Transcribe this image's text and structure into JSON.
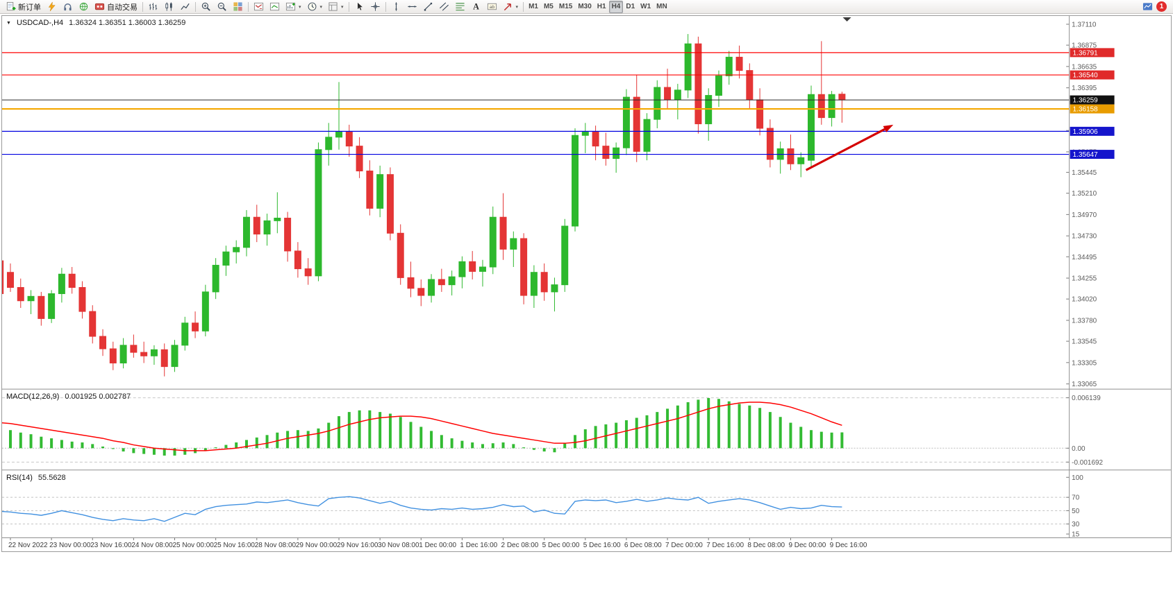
{
  "toolbar": {
    "new_order_label": "新订单",
    "auto_trading_label": "自动交易",
    "active_timeframe": "H4",
    "notification_count": "1",
    "items": [
      {
        "name": "new-order-button",
        "icon": "doc-plus",
        "label": "新订单"
      },
      {
        "name": "quick-trade-button",
        "icon": "lightning"
      },
      {
        "name": "market-watch-button",
        "icon": "headset"
      },
      {
        "name": "community-button",
        "icon": "globe"
      },
      {
        "name": "auto-trading-button",
        "icon": "autotrade",
        "label": "自动交易"
      },
      {
        "type": "sep"
      },
      {
        "name": "bar-chart-type-button",
        "icon": "bars"
      },
      {
        "name": "candlestick-chart-type-button",
        "icon": "candles"
      },
      {
        "name": "line-chart-type-button",
        "icon": "line"
      },
      {
        "type": "sep"
      },
      {
        "name": "zoom-in-button",
        "icon": "zoom-in"
      },
      {
        "name": "zoom-out-button",
        "icon": "zoom-out"
      },
      {
        "name": "tile-windows-button",
        "icon": "tiles"
      },
      {
        "type": "sep"
      },
      {
        "name": "indicators-list-button",
        "icon": "chart-down"
      },
      {
        "name": "objects-list-button",
        "icon": "chart-up"
      },
      {
        "name": "new-chart-button",
        "icon": "new-chart",
        "caret": true
      },
      {
        "name": "profiles-button",
        "icon": "clock",
        "caret": true
      },
      {
        "name": "templates-button",
        "icon": "template",
        "caret": true
      },
      {
        "type": "sep"
      },
      {
        "name": "cursor-tool-button",
        "icon": "cursor"
      },
      {
        "name": "crosshair-tool-button",
        "icon": "crosshair"
      },
      {
        "type": "sep"
      },
      {
        "name": "vertical-line-tool-button",
        "icon": "vline"
      },
      {
        "name": "horizontal-line-tool-button",
        "icon": "hline"
      },
      {
        "name": "trendline-tool-button",
        "icon": "trendline"
      },
      {
        "name": "equidistant-channel-tool-button",
        "icon": "channel"
      },
      {
        "name": "fibonacci-tool-button",
        "icon": "fib"
      },
      {
        "name": "text-tool-button",
        "icon": "text-a"
      },
      {
        "name": "text-label-tool-button",
        "icon": "label-t"
      },
      {
        "name": "arrows-tool-button",
        "icon": "arrow-ne",
        "caret": true
      },
      {
        "type": "sep"
      },
      {
        "name": "timeframe-m1-button",
        "label": "M1",
        "tf": true
      },
      {
        "name": "timeframe-m5-button",
        "label": "M5",
        "tf": true
      },
      {
        "name": "timeframe-m15-button",
        "label": "M15",
        "tf": true
      },
      {
        "name": "timeframe-m30-button",
        "label": "M30",
        "tf": true
      },
      {
        "name": "timeframe-h1-button",
        "label": "H1",
        "tf": true
      },
      {
        "name": "timeframe-h4-button",
        "label": "H4",
        "tf": true
      },
      {
        "name": "timeframe-d1-button",
        "label": "D1",
        "tf": true
      },
      {
        "name": "timeframe-w1-button",
        "label": "W1",
        "tf": true
      },
      {
        "name": "timeframe-mn-button",
        "label": "MN",
        "tf": true
      }
    ]
  },
  "chart": {
    "symbol_period": "USDCAD-,H4",
    "ohlc": "1.36324 1.36351 1.36003 1.36259",
    "macd_label": "MACD(12,26,9)",
    "macd_values": "0.001925 0.002787",
    "rsi_label": "RSI(14)",
    "rsi_value": "55.5628"
  },
  "chart_data": {
    "type": "candlestick",
    "title": "USDCAD-,H4",
    "symbol": "USDCAD",
    "timeframe": "H4",
    "ohlc_display": {
      "open": "1.36324",
      "high": "1.36351",
      "low": "1.36003",
      "close": "1.36259"
    },
    "colors": {
      "up": "#2DB82D",
      "down": "#E43535",
      "macd_hist": "#33BB33",
      "macd_signal": "#FF0000",
      "rsi": "#4090E0",
      "axis_text": "#5a5a5a"
    },
    "price_axis": {
      "max": 1.3711,
      "min": 1.33065,
      "ticks": [
        "1.37110",
        "1.36875",
        "1.36635",
        "1.36395",
        "1.36155",
        "1.35915",
        "1.35675",
        "1.35445",
        "1.35210",
        "1.34970",
        "1.34730",
        "1.34495",
        "1.34255",
        "1.34020",
        "1.33780",
        "1.33545",
        "1.33305",
        "1.33065"
      ]
    },
    "hlines": [
      {
        "name": "resistance-line-1",
        "price": 1.36791,
        "label": "1.36791",
        "color": "#FF0000",
        "bg": "#E02A2A",
        "width": 1.2
      },
      {
        "name": "resistance-line-2",
        "price": 1.3654,
        "label": "1.36540",
        "color": "#FF0000",
        "bg": "#E02A2A",
        "width": 1.2
      },
      {
        "name": "current-price-line",
        "price": 1.36259,
        "label": "1.36259",
        "color": "#2a2a2a",
        "bg": "#111111",
        "width": 1
      },
      {
        "name": "pivot-line",
        "price": 1.36158,
        "label": "1.36158",
        "color": "#F5A800",
        "bg": "#E89C00",
        "width": 2.2
      },
      {
        "name": "support-line-1",
        "price": 1.35906,
        "label": "1.35906",
        "color": "#0000E0",
        "bg": "#1515CC",
        "width": 1.2
      },
      {
        "name": "support-line-2",
        "price": 1.35647,
        "label": "1.35647",
        "color": "#0000E0",
        "bg": "#1515CC",
        "width": 1.2
      }
    ],
    "arrow": {
      "from_i": 78.5,
      "from_price": 1.3547,
      "to_i": 87,
      "to_price": 1.3598,
      "color": "#D40000"
    },
    "time_labels": [
      "22 Nov 2022",
      "23 Nov 00:00",
      "23 Nov 16:00",
      "24 Nov 08:00",
      "25 Nov 00:00",
      "25 Nov 16:00",
      "28 Nov 08:00",
      "29 Nov 00:00",
      "29 Nov 16:00",
      "30 Nov 08:00",
      "1 Dec 00:00",
      "1 Dec 16:00",
      "2 Dec 08:00",
      "5 Dec 00:00",
      "5 Dec 16:00",
      "6 Dec 08:00",
      "7 Dec 00:00",
      "7 Dec 16:00",
      "8 Dec 08:00",
      "9 Dec 00:00",
      "9 Dec 16:00"
    ],
    "candles": [
      [
        1.3445,
        1.3455,
        1.34,
        1.3408
      ],
      [
        1.3432,
        1.3442,
        1.341,
        1.3415
      ],
      [
        1.3415,
        1.3425,
        1.3392,
        1.34
      ],
      [
        1.34,
        1.3412,
        1.3385,
        1.3405
      ],
      [
        1.3405,
        1.341,
        1.3372,
        1.338
      ],
      [
        1.338,
        1.3412,
        1.3375,
        1.3408
      ],
      [
        1.3408,
        1.3437,
        1.3398,
        1.343
      ],
      [
        1.343,
        1.3438,
        1.3408,
        1.3415
      ],
      [
        1.3415,
        1.3422,
        1.338,
        1.3388
      ],
      [
        1.3388,
        1.3395,
        1.3352,
        1.336
      ],
      [
        1.336,
        1.3368,
        1.3338,
        1.3346
      ],
      [
        1.3346,
        1.3354,
        1.3322,
        1.333
      ],
      [
        1.333,
        1.3358,
        1.3324,
        1.335
      ],
      [
        1.335,
        1.3362,
        1.3336,
        1.3342
      ],
      [
        1.3342,
        1.3354,
        1.333,
        1.3338
      ],
      [
        1.3338,
        1.335,
        1.3328,
        1.3345
      ],
      [
        1.3345,
        1.3352,
        1.3315,
        1.3326
      ],
      [
        1.3326,
        1.3356,
        1.332,
        1.335
      ],
      [
        1.335,
        1.3382,
        1.3344,
        1.3375
      ],
      [
        1.3375,
        1.3388,
        1.3358,
        1.3366
      ],
      [
        1.3366,
        1.3418,
        1.336,
        1.341
      ],
      [
        1.341,
        1.3448,
        1.3402,
        1.344
      ],
      [
        1.344,
        1.3462,
        1.3428,
        1.3455
      ],
      [
        1.3455,
        1.3468,
        1.3442,
        1.346
      ],
      [
        1.346,
        1.3502,
        1.345,
        1.3494
      ],
      [
        1.3494,
        1.3508,
        1.3466,
        1.3475
      ],
      [
        1.3475,
        1.3498,
        1.3462,
        1.349
      ],
      [
        1.349,
        1.3522,
        1.3476,
        1.3493
      ],
      [
        1.3493,
        1.35,
        1.3444,
        1.3456
      ],
      [
        1.3456,
        1.3466,
        1.3426,
        1.3436
      ],
      [
        1.3436,
        1.3448,
        1.3418,
        1.3428
      ],
      [
        1.3428,
        1.3578,
        1.3422,
        1.357
      ],
      [
        1.357,
        1.36,
        1.3552,
        1.3584
      ],
      [
        1.3584,
        1.3646,
        1.357,
        1.359
      ],
      [
        1.359,
        1.3598,
        1.3562,
        1.3574
      ],
      [
        1.3574,
        1.3584,
        1.3538,
        1.3546
      ],
      [
        1.3546,
        1.3558,
        1.3496,
        1.3504
      ],
      [
        1.3504,
        1.3552,
        1.3494,
        1.3542
      ],
      [
        1.3542,
        1.355,
        1.3468,
        1.3476
      ],
      [
        1.3476,
        1.3486,
        1.3418,
        1.3426
      ],
      [
        1.3426,
        1.3444,
        1.3404,
        1.3414
      ],
      [
        1.3414,
        1.3424,
        1.3394,
        1.3406
      ],
      [
        1.3406,
        1.343,
        1.3398,
        1.3424
      ],
      [
        1.3424,
        1.3436,
        1.341,
        1.3418
      ],
      [
        1.3418,
        1.3434,
        1.3406,
        1.3427
      ],
      [
        1.3427,
        1.345,
        1.3414,
        1.3444
      ],
      [
        1.3444,
        1.3456,
        1.3424,
        1.3433
      ],
      [
        1.3433,
        1.3446,
        1.3416,
        1.3438
      ],
      [
        1.3438,
        1.3506,
        1.343,
        1.3494
      ],
      [
        1.3494,
        1.3521,
        1.3446,
        1.3458
      ],
      [
        1.3458,
        1.3478,
        1.3438,
        1.347
      ],
      [
        1.347,
        1.3476,
        1.3396,
        1.3406
      ],
      [
        1.3406,
        1.344,
        1.3392,
        1.3432
      ],
      [
        1.3432,
        1.3442,
        1.34,
        1.341
      ],
      [
        1.341,
        1.3426,
        1.3388,
        1.3418
      ],
      [
        1.3418,
        1.3492,
        1.341,
        1.3484
      ],
      [
        1.3484,
        1.3594,
        1.3478,
        1.3586
      ],
      [
        1.3586,
        1.36,
        1.3566,
        1.359
      ],
      [
        1.359,
        1.3597,
        1.3558,
        1.3574
      ],
      [
        1.3574,
        1.3589,
        1.3552,
        1.356
      ],
      [
        1.356,
        1.3578,
        1.3544,
        1.3572
      ],
      [
        1.3572,
        1.3638,
        1.3564,
        1.3629
      ],
      [
        1.3629,
        1.3654,
        1.3556,
        1.3568
      ],
      [
        1.3568,
        1.3611,
        1.3558,
        1.3604
      ],
      [
        1.3604,
        1.3648,
        1.3594,
        1.364
      ],
      [
        1.364,
        1.3661,
        1.3616,
        1.3626
      ],
      [
        1.3626,
        1.3644,
        1.3604,
        1.3637
      ],
      [
        1.3637,
        1.37,
        1.3628,
        1.3689
      ],
      [
        1.3689,
        1.3697,
        1.3588,
        1.3599
      ],
      [
        1.3599,
        1.3639,
        1.358,
        1.3631
      ],
      [
        1.3631,
        1.3659,
        1.3618,
        1.3653
      ],
      [
        1.3653,
        1.3681,
        1.3643,
        1.3674
      ],
      [
        1.3674,
        1.3687,
        1.365,
        1.3659
      ],
      [
        1.3659,
        1.3667,
        1.3616,
        1.3626
      ],
      [
        1.3626,
        1.3639,
        1.3586,
        1.3594
      ],
      [
        1.3594,
        1.3604,
        1.355,
        1.3559
      ],
      [
        1.3559,
        1.3579,
        1.3543,
        1.3571
      ],
      [
        1.3571,
        1.3587,
        1.3547,
        1.3554
      ],
      [
        1.3554,
        1.3567,
        1.3539,
        1.3561
      ],
      [
        1.3558,
        1.3642,
        1.355,
        1.3632
      ],
      [
        1.3632,
        1.3692,
        1.3598,
        1.3606
      ],
      [
        1.3606,
        1.3636,
        1.3596,
        1.3632
      ],
      [
        1.36324,
        1.36351,
        1.36003,
        1.36259
      ]
    ],
    "macd": {
      "label": "MACD(12,26,9)",
      "main_value": "0.001925",
      "signal_value": "0.002787",
      "range": [
        -0.001692,
        0.006139
      ],
      "axis_labels": [
        "0.006139",
        "0.00",
        "-0.001692"
      ],
      "histogram": [
        0.0024,
        0.0022,
        0.0019,
        0.0017,
        0.0014,
        0.0012,
        0.001,
        0.0008,
        0.0007,
        0.0005,
        0.0002,
        -0.0001,
        -0.0004,
        -0.0006,
        -0.0007,
        -0.0008,
        -0.0009,
        -0.0009,
        -0.0008,
        -0.0006,
        -0.0003,
        0.0001,
        0.0004,
        0.0007,
        0.001,
        0.0013,
        0.0016,
        0.0019,
        0.0021,
        0.0022,
        0.0021,
        0.0024,
        0.0031,
        0.0039,
        0.0044,
        0.0046,
        0.0046,
        0.0044,
        0.0042,
        0.0038,
        0.0032,
        0.0026,
        0.0021,
        0.0016,
        0.0012,
        0.0009,
        0.0007,
        0.0005,
        0.0006,
        0.0007,
        0.0005,
        0.0001,
        -0.0002,
        -0.0004,
        -0.0005,
        0.0006,
        0.0016,
        0.0023,
        0.0027,
        0.0029,
        0.0031,
        0.0034,
        0.0037,
        0.004,
        0.0044,
        0.0048,
        0.0052,
        0.0056,
        0.0059,
        0.0061,
        0.006,
        0.0057,
        0.0054,
        0.0052,
        0.0049,
        0.0044,
        0.0038,
        0.0031,
        0.0026,
        0.0022,
        0.002,
        0.0019,
        0.001925
      ],
      "signal": [
        0.0031,
        0.003,
        0.0028,
        0.0026,
        0.0024,
        0.0022,
        0.002,
        0.0018,
        0.0016,
        0.0014,
        0.0012,
        0.0009,
        0.0007,
        0.0004,
        0.0002,
        0.0,
        -0.0001,
        -0.0002,
        -0.0003,
        -0.0003,
        -0.0003,
        -0.0002,
        -0.0001,
        0.0,
        0.0002,
        0.0004,
        0.0006,
        0.0009,
        0.0012,
        0.0014,
        0.0016,
        0.0018,
        0.0021,
        0.0025,
        0.0029,
        0.0032,
        0.0035,
        0.0037,
        0.0038,
        0.0039,
        0.0039,
        0.0038,
        0.0036,
        0.0033,
        0.003,
        0.0027,
        0.0024,
        0.0021,
        0.0018,
        0.0016,
        0.0014,
        0.0012,
        0.001,
        0.0008,
        0.0006,
        0.0006,
        0.0007,
        0.0009,
        0.0012,
        0.0015,
        0.0018,
        0.0021,
        0.0024,
        0.0027,
        0.003,
        0.0033,
        0.0036,
        0.004,
        0.0044,
        0.0048,
        0.0051,
        0.0053,
        0.0055,
        0.0056,
        0.0056,
        0.0055,
        0.0053,
        0.005,
        0.0046,
        0.0042,
        0.0037,
        0.0032,
        0.002787
      ]
    },
    "rsi": {
      "label": "RSI(14)",
      "value": "55.5628",
      "range": [
        15,
        100
      ],
      "levels": [
        70,
        50,
        30
      ],
      "axis_labels": [
        "100",
        "70",
        "50",
        "30",
        "15"
      ],
      "values": [
        49,
        48,
        46,
        45,
        43,
        46,
        50,
        47,
        44,
        40,
        37,
        35,
        38,
        36,
        35,
        38,
        34,
        40,
        46,
        44,
        52,
        56,
        58,
        59,
        60,
        63,
        62,
        64,
        66,
        62,
        59,
        57,
        68,
        70,
        71,
        69,
        65,
        61,
        64,
        58,
        54,
        52,
        51,
        53,
        52,
        54,
        52,
        53,
        55,
        59,
        56,
        57,
        48,
        51,
        46,
        45,
        64,
        66,
        65,
        66,
        62,
        64,
        67,
        64,
        66,
        69,
        67,
        66,
        70,
        61,
        64,
        66,
        68,
        66,
        62,
        57,
        52,
        55,
        53,
        54,
        58,
        56,
        55.5628
      ]
    }
  }
}
